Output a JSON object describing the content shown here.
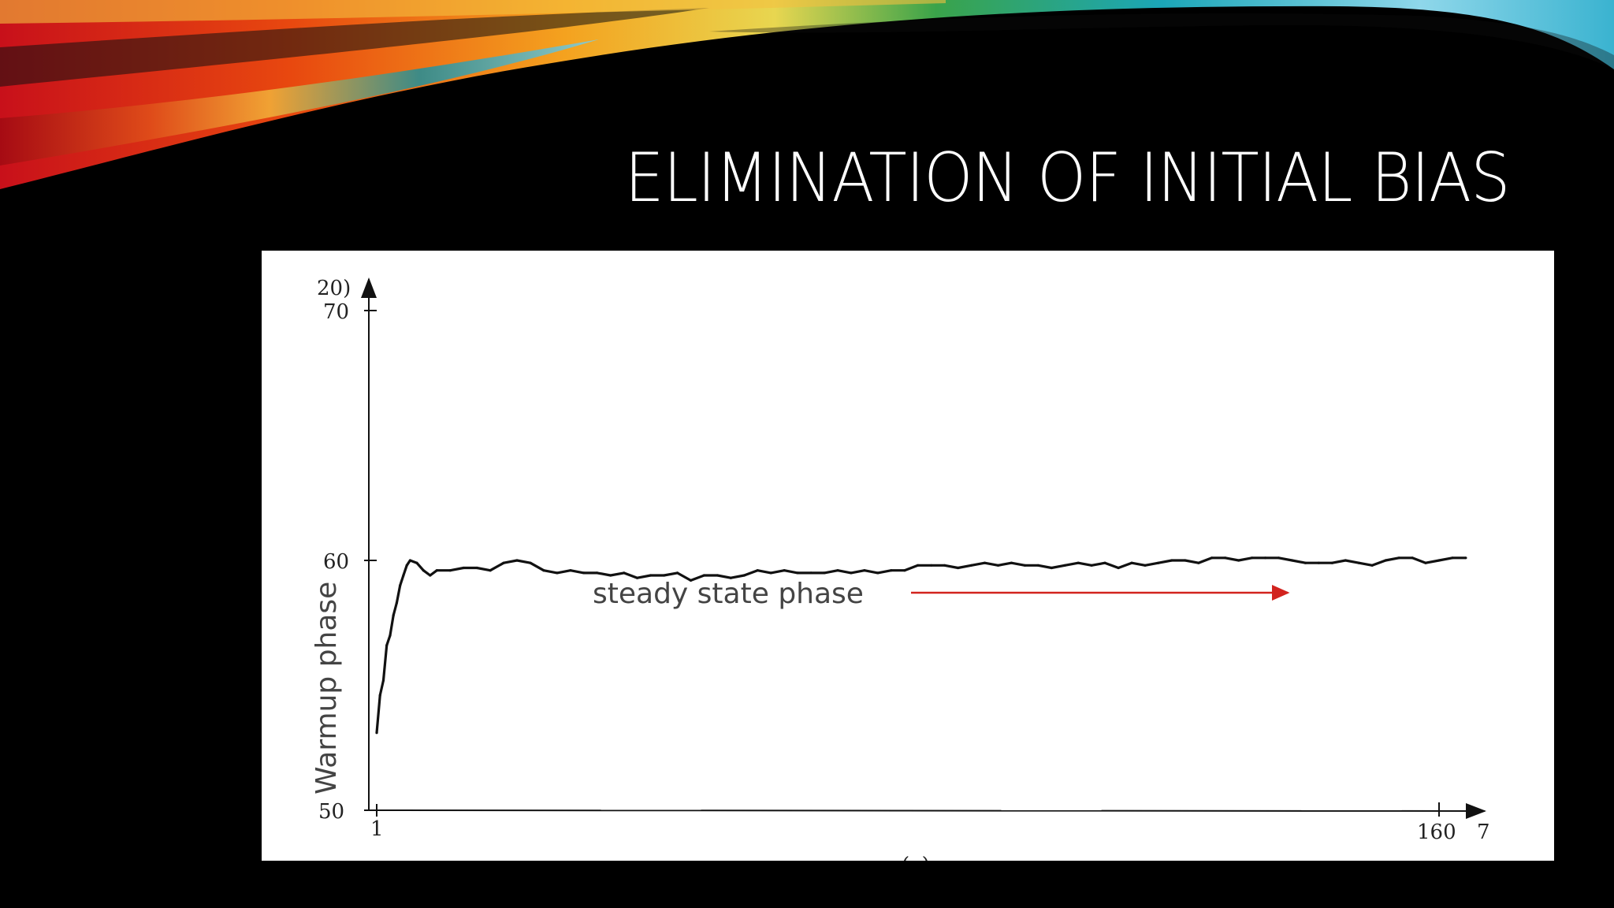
{
  "slide": {
    "title": "ELIMINATION OF INITIAL BIAS"
  },
  "colors": {
    "background": "#000000",
    "title": "#ffffff",
    "figure_background": "#ffffff",
    "series_line": "#111111",
    "arrow": "#d2231e"
  },
  "chart_data": {
    "type": "line",
    "title": "",
    "xlabel": "(a)",
    "ylabel": "Warmup phase",
    "annotation": "steady state phase",
    "x_tick_labels": [
      "1",
      "160",
      "7"
    ],
    "y_tick_labels": [
      "20)",
      "70",
      "60",
      "50"
    ],
    "xlim": [
      1,
      163
    ],
    "ylim": [
      50,
      70
    ],
    "grid": false,
    "series": [
      {
        "x": [
          1,
          1.5,
          2,
          2.5,
          3,
          3.5,
          4,
          4.5,
          5,
          5.5,
          6,
          7,
          8,
          9,
          10,
          12,
          14,
          16,
          18,
          20,
          22,
          24,
          26,
          28,
          30,
          32,
          34,
          36,
          38,
          40,
          42,
          44,
          46,
          48,
          50,
          52,
          54,
          56,
          58,
          60,
          62,
          64,
          66,
          68,
          70,
          72,
          74,
          76,
          78,
          80,
          82,
          84,
          86,
          88,
          90,
          92,
          94,
          96,
          98,
          100,
          102,
          104,
          106,
          108,
          110,
          112,
          114,
          116,
          118,
          120,
          122,
          124,
          126,
          128,
          130,
          132,
          134,
          136,
          138,
          140,
          142,
          144,
          146,
          148,
          150,
          152,
          154,
          156,
          158,
          160,
          162,
          164
        ],
        "y": [
          53.1,
          54.6,
          55.2,
          56.6,
          57.0,
          57.8,
          58.3,
          59.0,
          59.4,
          59.8,
          60.0,
          59.9,
          59.6,
          59.4,
          59.6,
          59.6,
          59.7,
          59.7,
          59.6,
          59.9,
          60.0,
          59.9,
          59.6,
          59.5,
          59.6,
          59.5,
          59.5,
          59.4,
          59.5,
          59.3,
          59.4,
          59.4,
          59.5,
          59.2,
          59.4,
          59.4,
          59.3,
          59.4,
          59.6,
          59.5,
          59.6,
          59.5,
          59.5,
          59.5,
          59.6,
          59.5,
          59.6,
          59.5,
          59.6,
          59.6,
          59.8,
          59.8,
          59.8,
          59.7,
          59.8,
          59.9,
          59.8,
          59.9,
          59.8,
          59.8,
          59.7,
          59.8,
          59.9,
          59.8,
          59.9,
          59.7,
          59.9,
          59.8,
          59.9,
          60.0,
          60.0,
          59.9,
          60.1,
          60.1,
          60.0,
          60.1,
          60.1,
          60.1,
          60.0,
          59.9,
          59.9,
          59.9,
          60.0,
          59.9,
          59.8,
          60.0,
          60.1,
          60.1,
          59.9,
          60.0,
          60.1,
          60.1
        ]
      }
    ]
  }
}
